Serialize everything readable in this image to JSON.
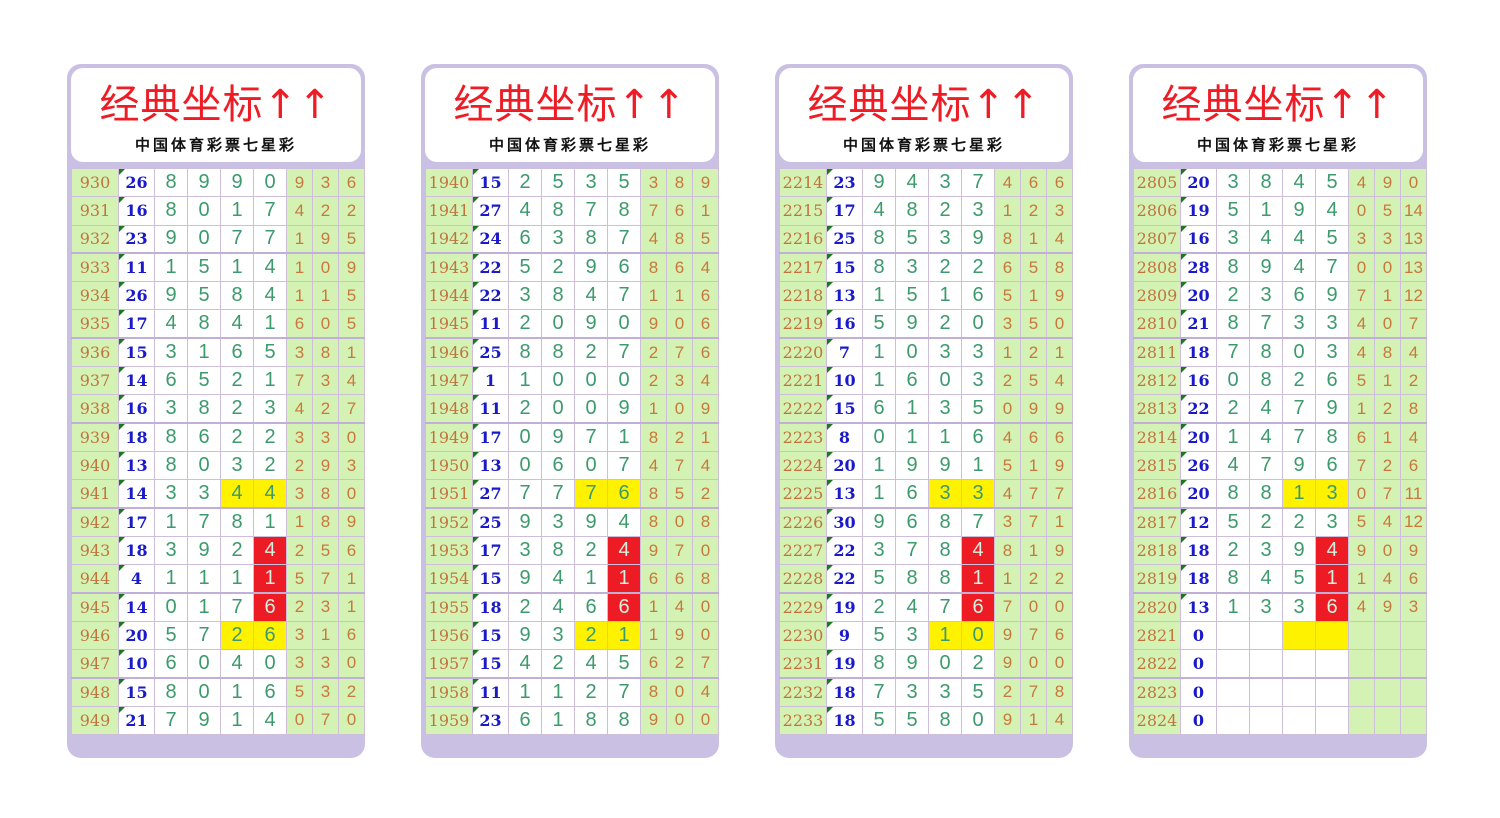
{
  "colors": {
    "title": "#ee1c25",
    "panel_border": "#c9c0e4",
    "green_bg": "#d4f2b4",
    "highlight_yellow": "#fff200",
    "highlight_red": "#ed1c24",
    "id_text": "#c0743c",
    "sum_text": "#1a1ac8",
    "digit_text": "#3c9a6c"
  },
  "panels": [
    {
      "title": "经典坐标↑↑",
      "subtitle": "中国体育彩票七星彩",
      "yellow": [
        "941:2",
        "941:3",
        "946:2",
        "946:3"
      ],
      "red": [
        "943:3",
        "944:3",
        "945:3"
      ],
      "rows": [
        [
          "930",
          "26",
          "8",
          "9",
          "9",
          "0",
          "9",
          "3",
          "6"
        ],
        [
          "931",
          "16",
          "8",
          "0",
          "1",
          "7",
          "4",
          "2",
          "2"
        ],
        [
          "932",
          "23",
          "9",
          "0",
          "7",
          "7",
          "1",
          "9",
          "5"
        ],
        [
          "933",
          "11",
          "1",
          "5",
          "1",
          "4",
          "1",
          "0",
          "9"
        ],
        [
          "934",
          "26",
          "9",
          "5",
          "8",
          "4",
          "1",
          "1",
          "5"
        ],
        [
          "935",
          "17",
          "4",
          "8",
          "4",
          "1",
          "6",
          "0",
          "5"
        ],
        [
          "936",
          "15",
          "3",
          "1",
          "6",
          "5",
          "3",
          "8",
          "1"
        ],
        [
          "937",
          "14",
          "6",
          "5",
          "2",
          "1",
          "7",
          "3",
          "4"
        ],
        [
          "938",
          "16",
          "3",
          "8",
          "2",
          "3",
          "4",
          "2",
          "7"
        ],
        [
          "939",
          "18",
          "8",
          "6",
          "2",
          "2",
          "3",
          "3",
          "0"
        ],
        [
          "940",
          "13",
          "8",
          "0",
          "3",
          "2",
          "2",
          "9",
          "3"
        ],
        [
          "941",
          "14",
          "3",
          "3",
          "4",
          "4",
          "3",
          "8",
          "0"
        ],
        [
          "942",
          "17",
          "1",
          "7",
          "8",
          "1",
          "1",
          "8",
          "9"
        ],
        [
          "943",
          "18",
          "3",
          "9",
          "2",
          "4",
          "2",
          "5",
          "6"
        ],
        [
          "944",
          "4",
          "1",
          "1",
          "1",
          "1",
          "5",
          "7",
          "1"
        ],
        [
          "945",
          "14",
          "0",
          "1",
          "7",
          "6",
          "2",
          "3",
          "1"
        ],
        [
          "946",
          "20",
          "5",
          "7",
          "2",
          "6",
          "3",
          "1",
          "6"
        ],
        [
          "947",
          "10",
          "6",
          "0",
          "4",
          "0",
          "3",
          "3",
          "0"
        ],
        [
          "948",
          "15",
          "8",
          "0",
          "1",
          "6",
          "5",
          "3",
          "2"
        ],
        [
          "949",
          "21",
          "7",
          "9",
          "1",
          "4",
          "0",
          "7",
          "0"
        ]
      ]
    },
    {
      "title": "经典坐标↑↑",
      "subtitle": "中国体育彩票七星彩",
      "yellow": [
        "1951:2",
        "1951:3",
        "1956:2",
        "1956:3"
      ],
      "red": [
        "1953:3",
        "1954:3",
        "1955:3"
      ],
      "rows": [
        [
          "1940",
          "15",
          "2",
          "5",
          "3",
          "5",
          "3",
          "8",
          "9"
        ],
        [
          "1941",
          "27",
          "4",
          "8",
          "7",
          "8",
          "7",
          "6",
          "1"
        ],
        [
          "1942",
          "24",
          "6",
          "3",
          "8",
          "7",
          "4",
          "8",
          "5"
        ],
        [
          "1943",
          "22",
          "5",
          "2",
          "9",
          "6",
          "8",
          "6",
          "4"
        ],
        [
          "1944",
          "22",
          "3",
          "8",
          "4",
          "7",
          "1",
          "1",
          "6"
        ],
        [
          "1945",
          "11",
          "2",
          "0",
          "9",
          "0",
          "9",
          "0",
          "6"
        ],
        [
          "1946",
          "25",
          "8",
          "8",
          "2",
          "7",
          "2",
          "7",
          "6"
        ],
        [
          "1947",
          "1",
          "1",
          "0",
          "0",
          "0",
          "2",
          "3",
          "4"
        ],
        [
          "1948",
          "11",
          "2",
          "0",
          "0",
          "9",
          "1",
          "0",
          "9"
        ],
        [
          "1949",
          "17",
          "0",
          "9",
          "7",
          "1",
          "8",
          "2",
          "1"
        ],
        [
          "1950",
          "13",
          "0",
          "6",
          "0",
          "7",
          "4",
          "7",
          "4"
        ],
        [
          "1951",
          "27",
          "7",
          "7",
          "7",
          "6",
          "8",
          "5",
          "2"
        ],
        [
          "1952",
          "25",
          "9",
          "3",
          "9",
          "4",
          "8",
          "0",
          "8"
        ],
        [
          "1953",
          "17",
          "3",
          "8",
          "2",
          "4",
          "9",
          "7",
          "0"
        ],
        [
          "1954",
          "15",
          "9",
          "4",
          "1",
          "1",
          "6",
          "6",
          "8"
        ],
        [
          "1955",
          "18",
          "2",
          "4",
          "6",
          "6",
          "1",
          "4",
          "0"
        ],
        [
          "1956",
          "15",
          "9",
          "3",
          "2",
          "1",
          "1",
          "9",
          "0"
        ],
        [
          "1957",
          "15",
          "4",
          "2",
          "4",
          "5",
          "6",
          "2",
          "7"
        ],
        [
          "1958",
          "11",
          "1",
          "1",
          "2",
          "7",
          "8",
          "0",
          "4"
        ],
        [
          "1959",
          "23",
          "6",
          "1",
          "8",
          "8",
          "9",
          "0",
          "0"
        ]
      ]
    },
    {
      "title": "经典坐标↑↑",
      "subtitle": "中国体育彩票七星彩",
      "yellow": [
        "2225:2",
        "2225:3",
        "2230:2",
        "2230:3"
      ],
      "red": [
        "2227:3",
        "2228:3",
        "2229:3"
      ],
      "rows": [
        [
          "2214",
          "23",
          "9",
          "4",
          "3",
          "7",
          "4",
          "6",
          "6"
        ],
        [
          "2215",
          "17",
          "4",
          "8",
          "2",
          "3",
          "1",
          "2",
          "3"
        ],
        [
          "2216",
          "25",
          "8",
          "5",
          "3",
          "9",
          "8",
          "1",
          "4"
        ],
        [
          "2217",
          "15",
          "8",
          "3",
          "2",
          "2",
          "6",
          "5",
          "8"
        ],
        [
          "2218",
          "13",
          "1",
          "5",
          "1",
          "6",
          "5",
          "1",
          "9"
        ],
        [
          "2219",
          "16",
          "5",
          "9",
          "2",
          "0",
          "3",
          "5",
          "0"
        ],
        [
          "2220",
          "7",
          "1",
          "0",
          "3",
          "3",
          "1",
          "2",
          "1"
        ],
        [
          "2221",
          "10",
          "1",
          "6",
          "0",
          "3",
          "2",
          "5",
          "4"
        ],
        [
          "2222",
          "15",
          "6",
          "1",
          "3",
          "5",
          "0",
          "9",
          "9"
        ],
        [
          "2223",
          "8",
          "0",
          "1",
          "1",
          "6",
          "4",
          "6",
          "6"
        ],
        [
          "2224",
          "20",
          "1",
          "9",
          "9",
          "1",
          "5",
          "1",
          "9"
        ],
        [
          "2225",
          "13",
          "1",
          "6",
          "3",
          "3",
          "4",
          "7",
          "7"
        ],
        [
          "2226",
          "30",
          "9",
          "6",
          "8",
          "7",
          "3",
          "7",
          "1"
        ],
        [
          "2227",
          "22",
          "3",
          "7",
          "8",
          "4",
          "8",
          "1",
          "9"
        ],
        [
          "2228",
          "22",
          "5",
          "8",
          "8",
          "1",
          "1",
          "2",
          "2"
        ],
        [
          "2229",
          "19",
          "2",
          "4",
          "7",
          "6",
          "7",
          "0",
          "0"
        ],
        [
          "2230",
          "9",
          "5",
          "3",
          "1",
          "0",
          "9",
          "7",
          "6"
        ],
        [
          "2231",
          "19",
          "8",
          "9",
          "0",
          "2",
          "9",
          "0",
          "0"
        ],
        [
          "2232",
          "18",
          "7",
          "3",
          "3",
          "5",
          "2",
          "7",
          "8"
        ],
        [
          "2233",
          "18",
          "5",
          "5",
          "8",
          "0",
          "9",
          "1",
          "4"
        ]
      ]
    },
    {
      "title": "经典坐标↑↑",
      "subtitle": "中国体育彩票七星彩",
      "yellow": [
        "2816:2",
        "2816:3",
        "2821:2",
        "2821:3"
      ],
      "red": [
        "2818:3",
        "2819:3",
        "2820:3"
      ],
      "rows": [
        [
          "2805",
          "20",
          "3",
          "8",
          "4",
          "5",
          "4",
          "9",
          "0"
        ],
        [
          "2806",
          "19",
          "5",
          "1",
          "9",
          "4",
          "0",
          "5",
          "14"
        ],
        [
          "2807",
          "16",
          "3",
          "4",
          "4",
          "5",
          "3",
          "3",
          "13"
        ],
        [
          "2808",
          "28",
          "8",
          "9",
          "4",
          "7",
          "0",
          "0",
          "13"
        ],
        [
          "2809",
          "20",
          "2",
          "3",
          "6",
          "9",
          "7",
          "1",
          "12"
        ],
        [
          "2810",
          "21",
          "8",
          "7",
          "3",
          "3",
          "4",
          "0",
          "7"
        ],
        [
          "2811",
          "18",
          "7",
          "8",
          "0",
          "3",
          "4",
          "8",
          "4"
        ],
        [
          "2812",
          "16",
          "0",
          "8",
          "2",
          "6",
          "5",
          "1",
          "2"
        ],
        [
          "2813",
          "22",
          "2",
          "4",
          "7",
          "9",
          "1",
          "2",
          "8"
        ],
        [
          "2814",
          "20",
          "1",
          "4",
          "7",
          "8",
          "6",
          "1",
          "4"
        ],
        [
          "2815",
          "26",
          "4",
          "7",
          "9",
          "6",
          "7",
          "2",
          "6"
        ],
        [
          "2816",
          "20",
          "8",
          "8",
          "1",
          "3",
          "0",
          "7",
          "11"
        ],
        [
          "2817",
          "12",
          "5",
          "2",
          "2",
          "3",
          "5",
          "4",
          "12"
        ],
        [
          "2818",
          "18",
          "2",
          "3",
          "9",
          "4",
          "9",
          "0",
          "9"
        ],
        [
          "2819",
          "18",
          "8",
          "4",
          "5",
          "1",
          "1",
          "4",
          "6"
        ],
        [
          "2820",
          "13",
          "1",
          "3",
          "3",
          "6",
          "4",
          "9",
          "3"
        ],
        [
          "2821",
          "0",
          "",
          "",
          "",
          "",
          "",
          "",
          ""
        ],
        [
          "2822",
          "0",
          "",
          "",
          "",
          "",
          "",
          "",
          ""
        ],
        [
          "2823",
          "0",
          "",
          "",
          "",
          "",
          "",
          "",
          ""
        ],
        [
          "2824",
          "0",
          "",
          "",
          "",
          "",
          "",
          "",
          ""
        ]
      ]
    }
  ]
}
